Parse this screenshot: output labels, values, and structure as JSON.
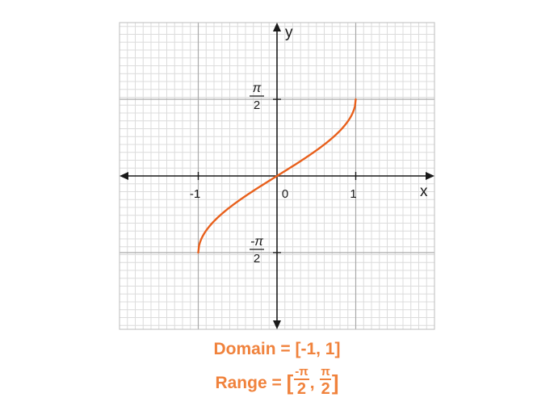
{
  "chart_data": {
    "type": "line",
    "function": "arcsin",
    "xlabel": "x",
    "ylabel": "y",
    "xlim": [
      -1,
      1
    ],
    "ylim": [
      -2.2,
      2.2
    ],
    "x_ticks": [
      {
        "value": -1,
        "label": "-1"
      },
      {
        "value": 0,
        "label": "0"
      },
      {
        "value": 1,
        "label": "1"
      }
    ],
    "y_ticks": [
      {
        "value": 1.5708,
        "num": "π",
        "den": "2"
      },
      {
        "value": -1.5708,
        "num": "-π",
        "den": "2"
      }
    ],
    "series": [
      {
        "color": "#e8601c",
        "x": [
          -1,
          -0.99,
          -0.95,
          -0.9,
          -0.8,
          -0.7,
          -0.6,
          -0.5,
          -0.4,
          -0.3,
          -0.2,
          -0.1,
          0,
          0.1,
          0.2,
          0.3,
          0.4,
          0.5,
          0.6,
          0.7,
          0.8,
          0.9,
          0.95,
          0.99,
          1
        ],
        "y": [
          -1.5708,
          -1.4293,
          -1.2532,
          -1.1198,
          -0.9273,
          -0.7754,
          -0.6435,
          -0.5236,
          -0.4115,
          -0.3047,
          -0.2014,
          -0.1002,
          0,
          0.1002,
          0.2014,
          0.3047,
          0.4115,
          0.5236,
          0.6435,
          0.7754,
          0.9273,
          1.1198,
          1.2532,
          1.4293,
          1.5708
        ]
      }
    ],
    "grid": true,
    "colors": {
      "curve": "#e8601c",
      "caption": "#f0823c",
      "grid_minor": "#dcdcdc",
      "grid_major": "#a9a9a9",
      "axis": "#1a1a1a"
    }
  },
  "captions": {
    "domain": "Domain = [-1, 1]",
    "range_prefix": "Range = ",
    "range_open": "[",
    "range_num1": "-π",
    "range_den1": "2",
    "range_sep": ", ",
    "range_num2": "π",
    "range_den2": "2",
    "range_close": "]"
  }
}
